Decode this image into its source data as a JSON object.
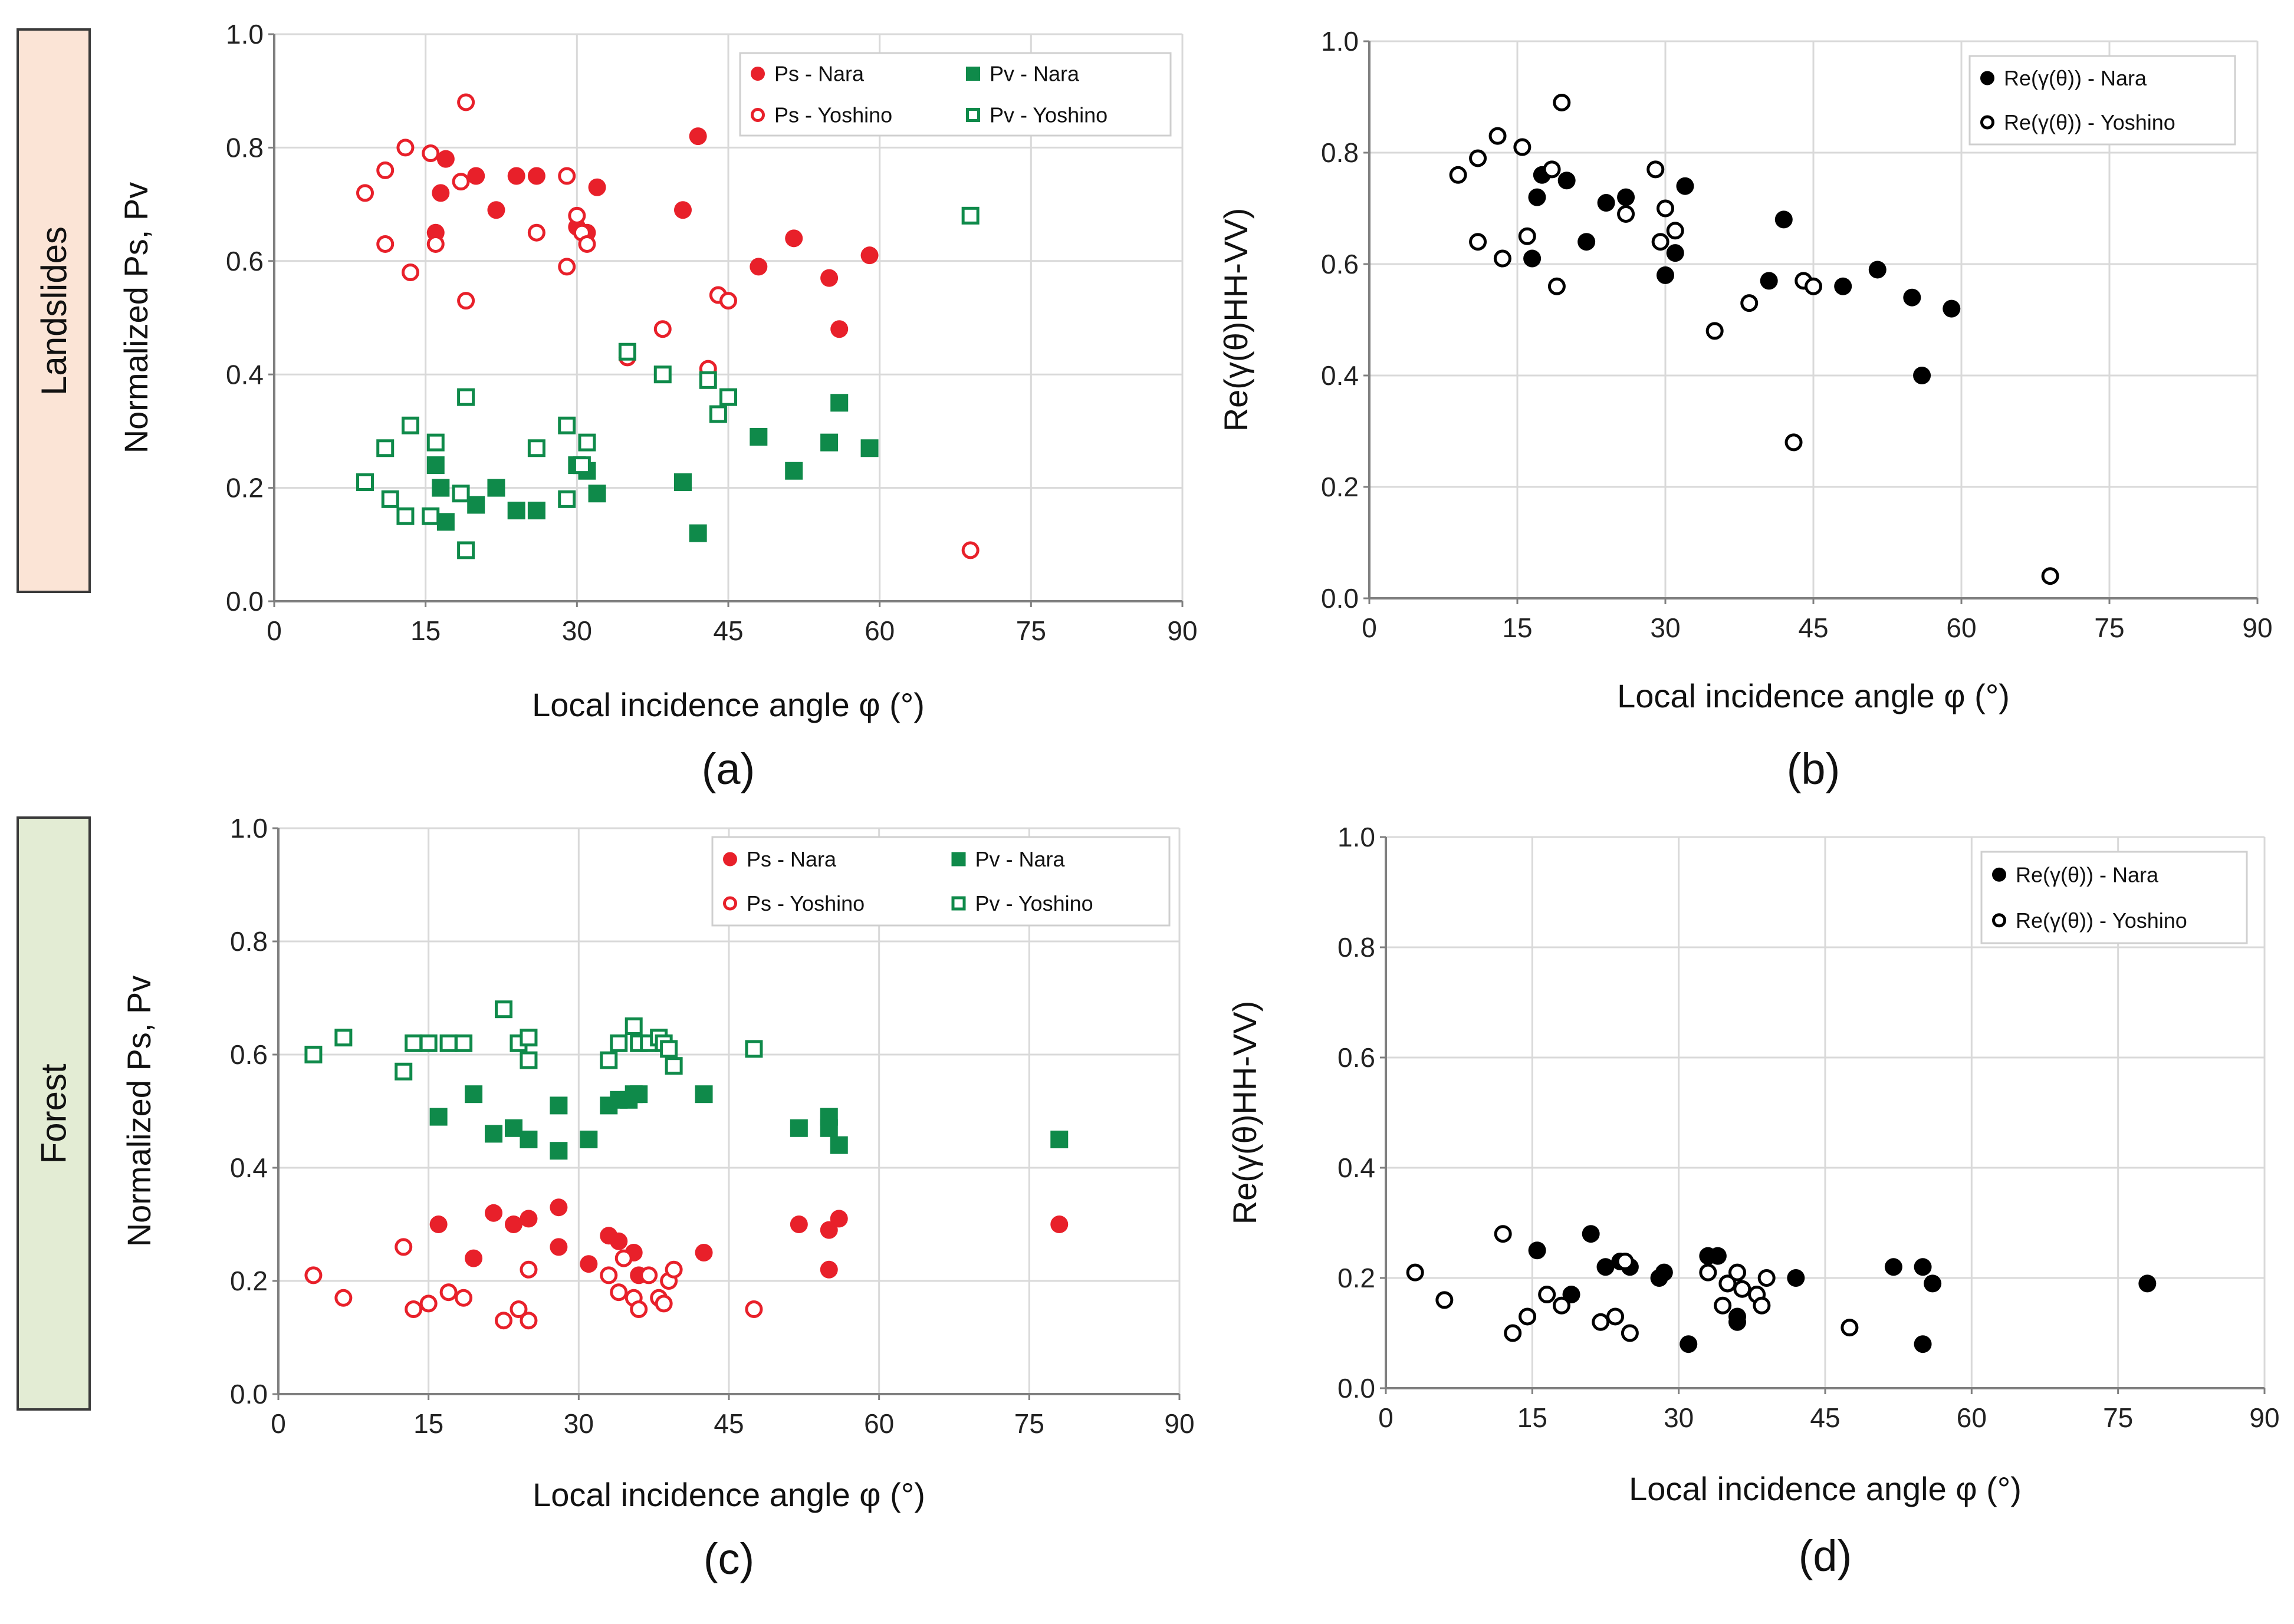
{
  "row_labels": {
    "landslides": "Landslides",
    "forest": "Forest"
  },
  "colors": {
    "red": "#e8202a",
    "green": "#0f8a4a",
    "black": "#000000",
    "grid": "#d9d9d9",
    "axis": "#7f7f7f"
  },
  "chart_data": [
    {
      "panel": "(a)",
      "type": "scatter",
      "xlabel": "Local incidence angle φ (°)",
      "ylabel": "Normalized Ps, Pv",
      "xlim": [
        0,
        90
      ],
      "ylim": [
        0,
        1.0
      ],
      "xticks": [
        "0",
        "15",
        "30",
        "45",
        "60",
        "75",
        "90"
      ],
      "yticks": [
        "0.0",
        "0.2",
        "0.4",
        "0.6",
        "0.8",
        "1.0"
      ],
      "legend_position": "top-right",
      "series": [
        {
          "name": "Ps - Nara",
          "marker": "filled-circle",
          "color": "#e8202a",
          "points": [
            [
              16,
              0.65
            ],
            [
              16.5,
              0.72
            ],
            [
              17,
              0.78
            ],
            [
              20,
              0.75
            ],
            [
              22,
              0.69
            ],
            [
              24,
              0.75
            ],
            [
              26,
              0.75
            ],
            [
              30,
              0.66
            ],
            [
              31,
              0.65
            ],
            [
              32,
              0.73
            ],
            [
              40.5,
              0.69
            ],
            [
              42,
              0.82
            ],
            [
              48,
              0.59
            ],
            [
              51.5,
              0.64
            ],
            [
              55,
              0.57
            ],
            [
              56,
              0.48
            ],
            [
              59,
              0.61
            ]
          ]
        },
        {
          "name": "Ps - Yoshino",
          "marker": "open-circle",
          "color": "#e8202a",
          "points": [
            [
              9,
              0.72
            ],
            [
              11,
              0.76
            ],
            [
              11,
              0.63
            ],
            [
              13,
              0.8
            ],
            [
              13.5,
              0.58
            ],
            [
              15.5,
              0.79
            ],
            [
              16,
              0.63
            ],
            [
              18.5,
              0.74
            ],
            [
              19,
              0.53
            ],
            [
              19,
              0.88
            ],
            [
              29,
              0.75
            ],
            [
              29,
              0.59
            ],
            [
              30,
              0.68
            ],
            [
              30.5,
              0.65
            ],
            [
              31,
              0.63
            ],
            [
              26,
              0.65
            ],
            [
              35,
              0.43
            ],
            [
              38.5,
              0.48
            ],
            [
              43,
              0.41
            ],
            [
              44,
              0.54
            ],
            [
              45,
              0.53
            ],
            [
              69,
              0.09
            ]
          ]
        },
        {
          "name": "Pv - Nara",
          "marker": "filled-square",
          "color": "#0f8a4a",
          "points": [
            [
              16,
              0.24
            ],
            [
              16.5,
              0.2
            ],
            [
              17,
              0.14
            ],
            [
              20,
              0.17
            ],
            [
              22,
              0.2
            ],
            [
              24,
              0.16
            ],
            [
              26,
              0.16
            ],
            [
              30,
              0.24
            ],
            [
              31,
              0.23
            ],
            [
              32,
              0.19
            ],
            [
              40.5,
              0.21
            ],
            [
              42,
              0.12
            ],
            [
              48,
              0.29
            ],
            [
              51.5,
              0.23
            ],
            [
              55,
              0.28
            ],
            [
              56,
              0.35
            ],
            [
              59,
              0.27
            ]
          ]
        },
        {
          "name": "Pv - Yoshino",
          "marker": "open-square",
          "color": "#0f8a4a",
          "points": [
            [
              9,
              0.21
            ],
            [
              11,
              0.27
            ],
            [
              11.5,
              0.18
            ],
            [
              13,
              0.15
            ],
            [
              13.5,
              0.31
            ],
            [
              15.5,
              0.15
            ],
            [
              16,
              0.28
            ],
            [
              18.5,
              0.19
            ],
            [
              19,
              0.36
            ],
            [
              19,
              0.09
            ],
            [
              26,
              0.27
            ],
            [
              29,
              0.31
            ],
            [
              29,
              0.18
            ],
            [
              30.5,
              0.24
            ],
            [
              31,
              0.28
            ],
            [
              35,
              0.44
            ],
            [
              38.5,
              0.4
            ],
            [
              43,
              0.39
            ],
            [
              44,
              0.33
            ],
            [
              45,
              0.36
            ],
            [
              69,
              0.68
            ]
          ]
        }
      ]
    },
    {
      "panel": "(b)",
      "type": "scatter",
      "xlabel": "Local incidence angle φ (°)",
      "ylabel": "Re(γ(θ)HH-VV)",
      "xlim": [
        0,
        90
      ],
      "ylim": [
        0,
        1.0
      ],
      "xticks": [
        "0",
        "15",
        "30",
        "45",
        "60",
        "75",
        "90"
      ],
      "yticks": [
        "0.0",
        "0.2",
        "0.4",
        "0.6",
        "0.8",
        "1.0"
      ],
      "legend_position": "top-right",
      "series": [
        {
          "name": "Re(γ(θ)) - Nara",
          "marker": "filled-circle",
          "color": "#000000",
          "points": [
            [
              16.5,
              0.61
            ],
            [
              17,
              0.72
            ],
            [
              17.5,
              0.76
            ],
            [
              20,
              0.75
            ],
            [
              22,
              0.64
            ],
            [
              24,
              0.71
            ],
            [
              26,
              0.72
            ],
            [
              30,
              0.58
            ],
            [
              31,
              0.62
            ],
            [
              32,
              0.74
            ],
            [
              40.5,
              0.57
            ],
            [
              42,
              0.68
            ],
            [
              48,
              0.56
            ],
            [
              51.5,
              0.59
            ],
            [
              55,
              0.54
            ],
            [
              56,
              0.4
            ],
            [
              59,
              0.52
            ]
          ]
        },
        {
          "name": "Re(γ(θ)) - Yoshino",
          "marker": "open-circle",
          "color": "#000000",
          "points": [
            [
              9,
              0.76
            ],
            [
              11,
              0.79
            ],
            [
              11,
              0.64
            ],
            [
              13,
              0.83
            ],
            [
              13.5,
              0.61
            ],
            [
              15.5,
              0.81
            ],
            [
              16,
              0.65
            ],
            [
              18.5,
              0.77
            ],
            [
              19,
              0.56
            ],
            [
              19.5,
              0.89
            ],
            [
              26,
              0.69
            ],
            [
              29,
              0.77
            ],
            [
              29.5,
              0.64
            ],
            [
              30,
              0.7
            ],
            [
              31,
              0.66
            ],
            [
              35,
              0.48
            ],
            [
              38.5,
              0.53
            ],
            [
              43,
              0.28
            ],
            [
              44,
              0.57
            ],
            [
              45,
              0.56
            ],
            [
              69,
              0.04
            ]
          ]
        }
      ]
    },
    {
      "panel": "(c)",
      "type": "scatter",
      "xlabel": "Local incidence angle φ (°)",
      "ylabel": "Normalized Ps, Pv",
      "xlim": [
        0,
        90
      ],
      "ylim": [
        0,
        1.0
      ],
      "xticks": [
        "0",
        "15",
        "30",
        "45",
        "60",
        "75",
        "90"
      ],
      "yticks": [
        "0.0",
        "0.2",
        "0.4",
        "0.6",
        "0.8",
        "1.0"
      ],
      "legend_position": "top-right",
      "series": [
        {
          "name": "Ps - Nara",
          "marker": "filled-circle",
          "color": "#e8202a",
          "points": [
            [
              16,
              0.3
            ],
            [
              19.5,
              0.24
            ],
            [
              21.5,
              0.32
            ],
            [
              23.5,
              0.3
            ],
            [
              25,
              0.31
            ],
            [
              28,
              0.33
            ],
            [
              28,
              0.26
            ],
            [
              31,
              0.23
            ],
            [
              33,
              0.28
            ],
            [
              34,
              0.27
            ],
            [
              35.5,
              0.25
            ],
            [
              36,
              0.21
            ],
            [
              42.5,
              0.25
            ],
            [
              52,
              0.3
            ],
            [
              55,
              0.29
            ],
            [
              55,
              0.22
            ],
            [
              56,
              0.31
            ],
            [
              78,
              0.3
            ]
          ]
        },
        {
          "name": "Ps - Yoshino",
          "marker": "open-circle",
          "color": "#e8202a",
          "points": [
            [
              3.5,
              0.21
            ],
            [
              6.5,
              0.17
            ],
            [
              12.5,
              0.26
            ],
            [
              13.5,
              0.15
            ],
            [
              15,
              0.16
            ],
            [
              17,
              0.18
            ],
            [
              18.5,
              0.17
            ],
            [
              22.5,
              0.13
            ],
            [
              24,
              0.15
            ],
            [
              25,
              0.13
            ],
            [
              25,
              0.22
            ],
            [
              33,
              0.21
            ],
            [
              34,
              0.18
            ],
            [
              34.5,
              0.24
            ],
            [
              35.5,
              0.17
            ],
            [
              36,
              0.15
            ],
            [
              37,
              0.21
            ],
            [
              38,
              0.17
            ],
            [
              38.5,
              0.16
            ],
            [
              39,
              0.2
            ],
            [
              39.5,
              0.22
            ],
            [
              47.5,
              0.15
            ]
          ]
        },
        {
          "name": "Pv - Nara",
          "marker": "filled-square",
          "color": "#0f8a4a",
          "points": [
            [
              16,
              0.49
            ],
            [
              19.5,
              0.53
            ],
            [
              21.5,
              0.46
            ],
            [
              23.5,
              0.47
            ],
            [
              25,
              0.45
            ],
            [
              28,
              0.51
            ],
            [
              28,
              0.43
            ],
            [
              31,
              0.45
            ],
            [
              33,
              0.51
            ],
            [
              34,
              0.52
            ],
            [
              35,
              0.52
            ],
            [
              35.5,
              0.53
            ],
            [
              36,
              0.53
            ],
            [
              42.5,
              0.53
            ],
            [
              52,
              0.47
            ],
            [
              55,
              0.49
            ],
            [
              55,
              0.47
            ],
            [
              56,
              0.44
            ],
            [
              78,
              0.45
            ]
          ]
        },
        {
          "name": "Pv - Yoshino",
          "marker": "open-square",
          "color": "#0f8a4a",
          "points": [
            [
              3.5,
              0.6
            ],
            [
              6.5,
              0.63
            ],
            [
              12.5,
              0.57
            ],
            [
              13.5,
              0.62
            ],
            [
              15,
              0.62
            ],
            [
              17,
              0.62
            ],
            [
              18.5,
              0.62
            ],
            [
              22.5,
              0.68
            ],
            [
              24,
              0.62
            ],
            [
              25,
              0.59
            ],
            [
              25,
              0.63
            ],
            [
              33,
              0.59
            ],
            [
              34,
              0.62
            ],
            [
              35.5,
              0.65
            ],
            [
              36,
              0.62
            ],
            [
              37,
              0.62
            ],
            [
              38,
              0.63
            ],
            [
              38.5,
              0.62
            ],
            [
              39,
              0.61
            ],
            [
              39.5,
              0.58
            ],
            [
              47.5,
              0.61
            ]
          ]
        }
      ]
    },
    {
      "panel": "(d)",
      "type": "scatter",
      "xlabel": "Local incidence angle φ (°)",
      "ylabel": "Re(γ(θ)HH-VV)",
      "xlim": [
        0,
        90
      ],
      "ylim": [
        0,
        1.0
      ],
      "xticks": [
        "0",
        "15",
        "30",
        "45",
        "60",
        "75",
        "90"
      ],
      "yticks": [
        "0.0",
        "0.2",
        "0.4",
        "0.6",
        "0.8",
        "1.0"
      ],
      "legend_position": "top-right",
      "series": [
        {
          "name": "Re(γ(θ)) - Nara",
          "marker": "filled-circle",
          "color": "#000000",
          "points": [
            [
              15.5,
              0.25
            ],
            [
              19,
              0.17
            ],
            [
              21,
              0.28
            ],
            [
              22.5,
              0.22
            ],
            [
              24,
              0.23
            ],
            [
              25,
              0.22
            ],
            [
              28,
              0.2
            ],
            [
              28.5,
              0.21
            ],
            [
              31,
              0.08
            ],
            [
              33,
              0.24
            ],
            [
              34,
              0.24
            ],
            [
              35,
              0.19
            ],
            [
              36,
              0.12
            ],
            [
              36,
              0.13
            ],
            [
              42,
              0.2
            ],
            [
              52,
              0.22
            ],
            [
              55,
              0.22
            ],
            [
              55,
              0.08
            ],
            [
              56,
              0.19
            ],
            [
              78,
              0.19
            ]
          ]
        },
        {
          "name": "Re(γ(θ)) - Yoshino",
          "marker": "open-circle",
          "color": "#000000",
          "points": [
            [
              3,
              0.21
            ],
            [
              6,
              0.16
            ],
            [
              12,
              0.28
            ],
            [
              13,
              0.1
            ],
            [
              14.5,
              0.13
            ],
            [
              16.5,
              0.17
            ],
            [
              18,
              0.15
            ],
            [
              22,
              0.12
            ],
            [
              23.5,
              0.13
            ],
            [
              24.5,
              0.23
            ],
            [
              25,
              0.1
            ],
            [
              33,
              0.21
            ],
            [
              34.5,
              0.15
            ],
            [
              35,
              0.19
            ],
            [
              36,
              0.21
            ],
            [
              36.5,
              0.18
            ],
            [
              38,
              0.17
            ],
            [
              38.5,
              0.15
            ],
            [
              39,
              0.2
            ],
            [
              47.5,
              0.11
            ]
          ]
        }
      ]
    }
  ],
  "panel_labels": [
    "(a)",
    "(b)",
    "(c)",
    "(d)"
  ]
}
